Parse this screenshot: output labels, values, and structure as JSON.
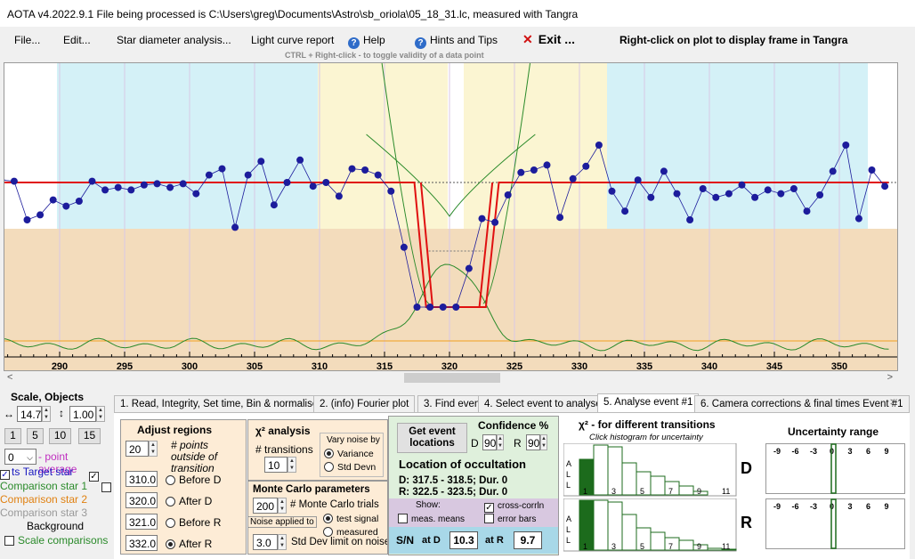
{
  "title": "AOTA v4.2022.9.1     File being processed is C:\\Users\\greg\\Documents\\Astro\\sb_oriola\\05_18_31.lc, measured with Tangra",
  "menu": {
    "file": "File...",
    "edit": "Edit...",
    "star_diameter": "Star diameter analysis...",
    "light_curve": "Light curve report",
    "help": "Help",
    "hints": "Hints and Tips",
    "exit": "Exit ...",
    "right_click_note": "Right-click on plot to display frame in Tangra",
    "ctrl_hint": "CTRL + Right-click  -  to toggle validity of a data point"
  },
  "colors": {
    "cyan_region": "#d4f1f7",
    "yellow_region": "#fbf5d2",
    "tan_region": "#f3dcbc",
    "data_blue": "#1c1c9c",
    "model_red": "#e01010",
    "chi_green": "#2a8a2a",
    "orange_line": "#f0a020"
  },
  "chart_data": {
    "type": "line",
    "x_range": [
      285.5,
      353.8
    ],
    "x_ticks": [
      "290",
      "295",
      "300",
      "305",
      "310",
      "315",
      "320",
      "325",
      "330",
      "335",
      "340",
      "345",
      "350"
    ],
    "grid": true,
    "series": [
      {
        "values_x": [
          285.5,
          286.5,
          287.5,
          288.5,
          289.5,
          290.5,
          291.5,
          292.5,
          293.5,
          294.5,
          295.5,
          296.5,
          297.5,
          298.5,
          299.5,
          300.5,
          301.5,
          302.5,
          303.5,
          304.5,
          305.5,
          306.5,
          307.5,
          308.5,
          309.5,
          310.5,
          311.5,
          312.5,
          313.5,
          314.5,
          315.5,
          316.5,
          317.5,
          318.5,
          319.5,
          320.5,
          321.5,
          322.5,
          323.5,
          324.5,
          325.5,
          326.5,
          327.5,
          328.5,
          329.5,
          330.5,
          331.5,
          332.5,
          333.5,
          334.5,
          335.5,
          336.5,
          337.5,
          338.5,
          339.5,
          340.5,
          341.5,
          342.5,
          343.5,
          344.5,
          345.5,
          346.5,
          347.5,
          348.5,
          349.5,
          350.5,
          351.5,
          352.5,
          353.5
        ],
        "values_y": [
          0.02,
          0.01,
          -0.3,
          -0.26,
          -0.14,
          -0.19,
          -0.15,
          0.01,
          -0.06,
          -0.04,
          -0.06,
          -0.02,
          -0.01,
          -0.04,
          -0.01,
          -0.09,
          0.06,
          0.11,
          -0.36,
          0.06,
          0.17,
          -0.18,
          0.0,
          0.18,
          -0.03,
          0.0,
          -0.11,
          0.11,
          0.1,
          0.06,
          -0.07,
          -0.52,
          -1.0,
          -1.0,
          -1.0,
          -1.0,
          -0.69,
          -0.29,
          -0.32,
          -0.1,
          0.08,
          0.1,
          0.14,
          -0.28,
          0.03,
          0.13,
          0.3,
          -0.07,
          -0.23,
          0.02,
          -0.12,
          0.09,
          -0.09,
          -0.3,
          -0.05,
          -0.12,
          -0.09,
          -0.02,
          -0.12,
          -0.06,
          -0.09,
          -0.05,
          -0.23,
          -0.1,
          0.09,
          0.3,
          -0.29,
          0.1,
          -0.03
        ]
      }
    ]
  },
  "left": {
    "scale_label": "Scale,  Objects",
    "hscale": "14.7",
    "vscale": "1.00",
    "btn_1": "1",
    "btn_5": "5",
    "btn_10": "10",
    "btn_15": "15",
    "point_avg_value": "0",
    "point_avg_label": "- point average",
    "target_label": "Target star",
    "comp1": "Comparison star 1",
    "comp2": "Comparison star 2",
    "comp3": "Comparison star 3",
    "background": "Background",
    "scale_comp": "Scale comparisons",
    "pts": "ts"
  },
  "tabs": [
    {
      "label": "1.  Read, Integrity, Set time, Bin & normalise"
    },
    {
      "label": "2. (info)  Fourier plot"
    },
    {
      "label": "3. Find events"
    },
    {
      "label": "4. Select event to analyse"
    },
    {
      "label": "5. Analyse event #1"
    },
    {
      "label": "6. Camera corrections & final times Event #1"
    }
  ],
  "adjust": {
    "title": "Adjust regions",
    "points_value": "20",
    "points_label": "# points outside of transition",
    "before_d_value": "310.0",
    "before_d": "Before D",
    "after_d_value": "320.0",
    "after_d": "After D",
    "before_r_value": "321.0",
    "before_r": "Before R",
    "after_r_value": "332.0",
    "after_r": "After R"
  },
  "chi": {
    "title": "χ² analysis",
    "transitions_label": "# transitions",
    "transitions_value": "10",
    "vary_label": "Vary noise by",
    "variance": "Variance",
    "stddev": "Std Devn"
  },
  "monte": {
    "title": "Monte Carlo parameters",
    "trials_value": "200",
    "trials_label": "# Monte Carlo trials",
    "noise_label": "Noise applied to",
    "test_signal": "test signal",
    "measured": "measured",
    "stddev_value": "3.0",
    "stddev_label": "Std Dev limit on noise"
  },
  "location": {
    "get_events": "Get event locations",
    "confidence": "Confidence %",
    "d_label": "D",
    "d_value": "90",
    "r_label": "R",
    "r_value": "90",
    "title": "Location of occultation",
    "d_line": "D: 317.5 - 318.5; Dur. 0",
    "r_line": "R: 322.5 - 323.5; Dur. 0",
    "show": "Show:",
    "meas_means": "meas. means",
    "cross_corr": "cross-corrln",
    "error_bars": "error bars",
    "sn": "S/N",
    "at_d": "at D",
    "sn_d": "10.3",
    "at_r": "at R",
    "sn_r": "9.7"
  },
  "histogram": {
    "title": "χ² - for different transitions",
    "subtitle": "Click histogram for uncertainty",
    "axis_letters": [
      "A",
      "L",
      "L"
    ],
    "ticks": [
      "1",
      "3",
      "5",
      "7",
      "9",
      "11"
    ],
    "d_label": "D",
    "r_label": "R"
  },
  "uncertainty": {
    "title": "Uncertainty range",
    "ticks": [
      "-9",
      "-6",
      "-3",
      "0",
      "3",
      "6",
      "9"
    ]
  }
}
